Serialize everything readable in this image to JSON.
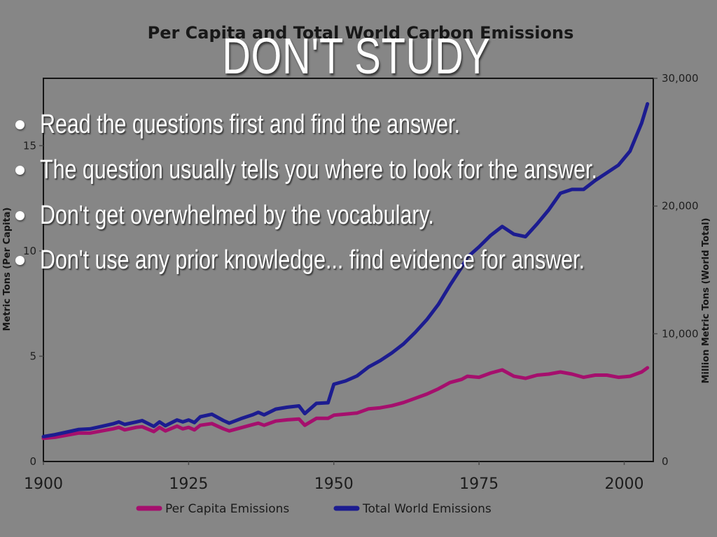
{
  "slide": {
    "background": "#868686",
    "title": "DON'T STUDY",
    "bullets": [
      "Read the questions first and find the answer.",
      "The question usually tells you where to look for the answer.",
      "Don't get overwhelmed by the vocabulary.",
      "Don't use any prior knowledge... find evidence for answer."
    ]
  },
  "chart_data": {
    "type": "line",
    "title": "Per Capita and Total World Carbon Emissions",
    "legend_position": "bottom",
    "grid": false,
    "x_axis": {
      "range": [
        1900,
        2005
      ],
      "ticks": [
        1900,
        1925,
        1950,
        1975,
        2000
      ],
      "tick_labels": [
        "1900",
        "1925",
        "1950",
        "1975",
        "2000"
      ]
    },
    "left_axis": {
      "label": "Metric Tons (Per Capita)",
      "range": [
        0,
        18.2
      ],
      "ticks": [
        0,
        5,
        10,
        15
      ],
      "tick_labels": [
        "0",
        "5",
        "10",
        "15"
      ]
    },
    "right_axis": {
      "label": "Million Metric Tons (World Total)",
      "range": [
        0,
        30000
      ],
      "ticks": [
        0,
        10000,
        20000,
        30000
      ],
      "tick_labels": [
        "0",
        "10,000",
        "20,000",
        "30,000"
      ]
    },
    "series": [
      {
        "name": "Per Capita Emissions",
        "axis": "left",
        "color": "#a50f6d",
        "points": [
          [
            1900,
            1.1
          ],
          [
            1902,
            1.15
          ],
          [
            1904,
            1.25
          ],
          [
            1906,
            1.35
          ],
          [
            1908,
            1.35
          ],
          [
            1910,
            1.45
          ],
          [
            1912,
            1.55
          ],
          [
            1913,
            1.62
          ],
          [
            1914,
            1.5
          ],
          [
            1916,
            1.62
          ],
          [
            1917,
            1.65
          ],
          [
            1919,
            1.42
          ],
          [
            1920,
            1.62
          ],
          [
            1921,
            1.45
          ],
          [
            1923,
            1.68
          ],
          [
            1924,
            1.55
          ],
          [
            1925,
            1.62
          ],
          [
            1926,
            1.5
          ],
          [
            1927,
            1.72
          ],
          [
            1929,
            1.8
          ],
          [
            1931,
            1.55
          ],
          [
            1932,
            1.45
          ],
          [
            1934,
            1.6
          ],
          [
            1936,
            1.75
          ],
          [
            1937,
            1.82
          ],
          [
            1938,
            1.72
          ],
          [
            1940,
            1.92
          ],
          [
            1942,
            1.98
          ],
          [
            1944,
            2.02
          ],
          [
            1945,
            1.72
          ],
          [
            1947,
            2.05
          ],
          [
            1949,
            2.05
          ],
          [
            1950,
            2.2
          ],
          [
            1952,
            2.25
          ],
          [
            1954,
            2.3
          ],
          [
            1956,
            2.5
          ],
          [
            1958,
            2.55
          ],
          [
            1960,
            2.65
          ],
          [
            1962,
            2.8
          ],
          [
            1964,
            3.0
          ],
          [
            1966,
            3.2
          ],
          [
            1968,
            3.45
          ],
          [
            1970,
            3.75
          ],
          [
            1972,
            3.9
          ],
          [
            1973,
            4.05
          ],
          [
            1975,
            4.0
          ],
          [
            1977,
            4.2
          ],
          [
            1979,
            4.35
          ],
          [
            1981,
            4.05
          ],
          [
            1983,
            3.95
          ],
          [
            1985,
            4.1
          ],
          [
            1987,
            4.15
          ],
          [
            1989,
            4.25
          ],
          [
            1991,
            4.15
          ],
          [
            1993,
            4.0
          ],
          [
            1995,
            4.1
          ],
          [
            1997,
            4.1
          ],
          [
            1999,
            4.0
          ],
          [
            2001,
            4.05
          ],
          [
            2003,
            4.25
          ],
          [
            2004,
            4.45
          ]
        ]
      },
      {
        "name": "Total World Emissions",
        "axis": "right",
        "color": "#1c1c90",
        "points": [
          [
            1900,
            1950
          ],
          [
            1902,
            2100
          ],
          [
            1904,
            2300
          ],
          [
            1906,
            2500
          ],
          [
            1908,
            2550
          ],
          [
            1910,
            2750
          ],
          [
            1912,
            2950
          ],
          [
            1913,
            3100
          ],
          [
            1914,
            2900
          ],
          [
            1916,
            3100
          ],
          [
            1917,
            3200
          ],
          [
            1919,
            2750
          ],
          [
            1920,
            3100
          ],
          [
            1921,
            2800
          ],
          [
            1923,
            3250
          ],
          [
            1924,
            3100
          ],
          [
            1925,
            3250
          ],
          [
            1926,
            3050
          ],
          [
            1927,
            3500
          ],
          [
            1929,
            3700
          ],
          [
            1931,
            3200
          ],
          [
            1932,
            3000
          ],
          [
            1934,
            3350
          ],
          [
            1936,
            3650
          ],
          [
            1937,
            3850
          ],
          [
            1938,
            3650
          ],
          [
            1940,
            4100
          ],
          [
            1942,
            4250
          ],
          [
            1944,
            4350
          ],
          [
            1945,
            3750
          ],
          [
            1947,
            4550
          ],
          [
            1949,
            4600
          ],
          [
            1950,
            6050
          ],
          [
            1952,
            6300
          ],
          [
            1954,
            6700
          ],
          [
            1956,
            7400
          ],
          [
            1958,
            7900
          ],
          [
            1960,
            8500
          ],
          [
            1962,
            9200
          ],
          [
            1964,
            10100
          ],
          [
            1966,
            11100
          ],
          [
            1968,
            12300
          ],
          [
            1970,
            13800
          ],
          [
            1972,
            15200
          ],
          [
            1973,
            16000
          ],
          [
            1975,
            16800
          ],
          [
            1977,
            17700
          ],
          [
            1979,
            18400
          ],
          [
            1981,
            17800
          ],
          [
            1983,
            17600
          ],
          [
            1985,
            18600
          ],
          [
            1987,
            19700
          ],
          [
            1989,
            21000
          ],
          [
            1991,
            21300
          ],
          [
            1993,
            21300
          ],
          [
            1995,
            22000
          ],
          [
            1997,
            22600
          ],
          [
            1999,
            23200
          ],
          [
            2001,
            24300
          ],
          [
            2003,
            26500
          ],
          [
            2004,
            28000
          ]
        ]
      }
    ]
  }
}
